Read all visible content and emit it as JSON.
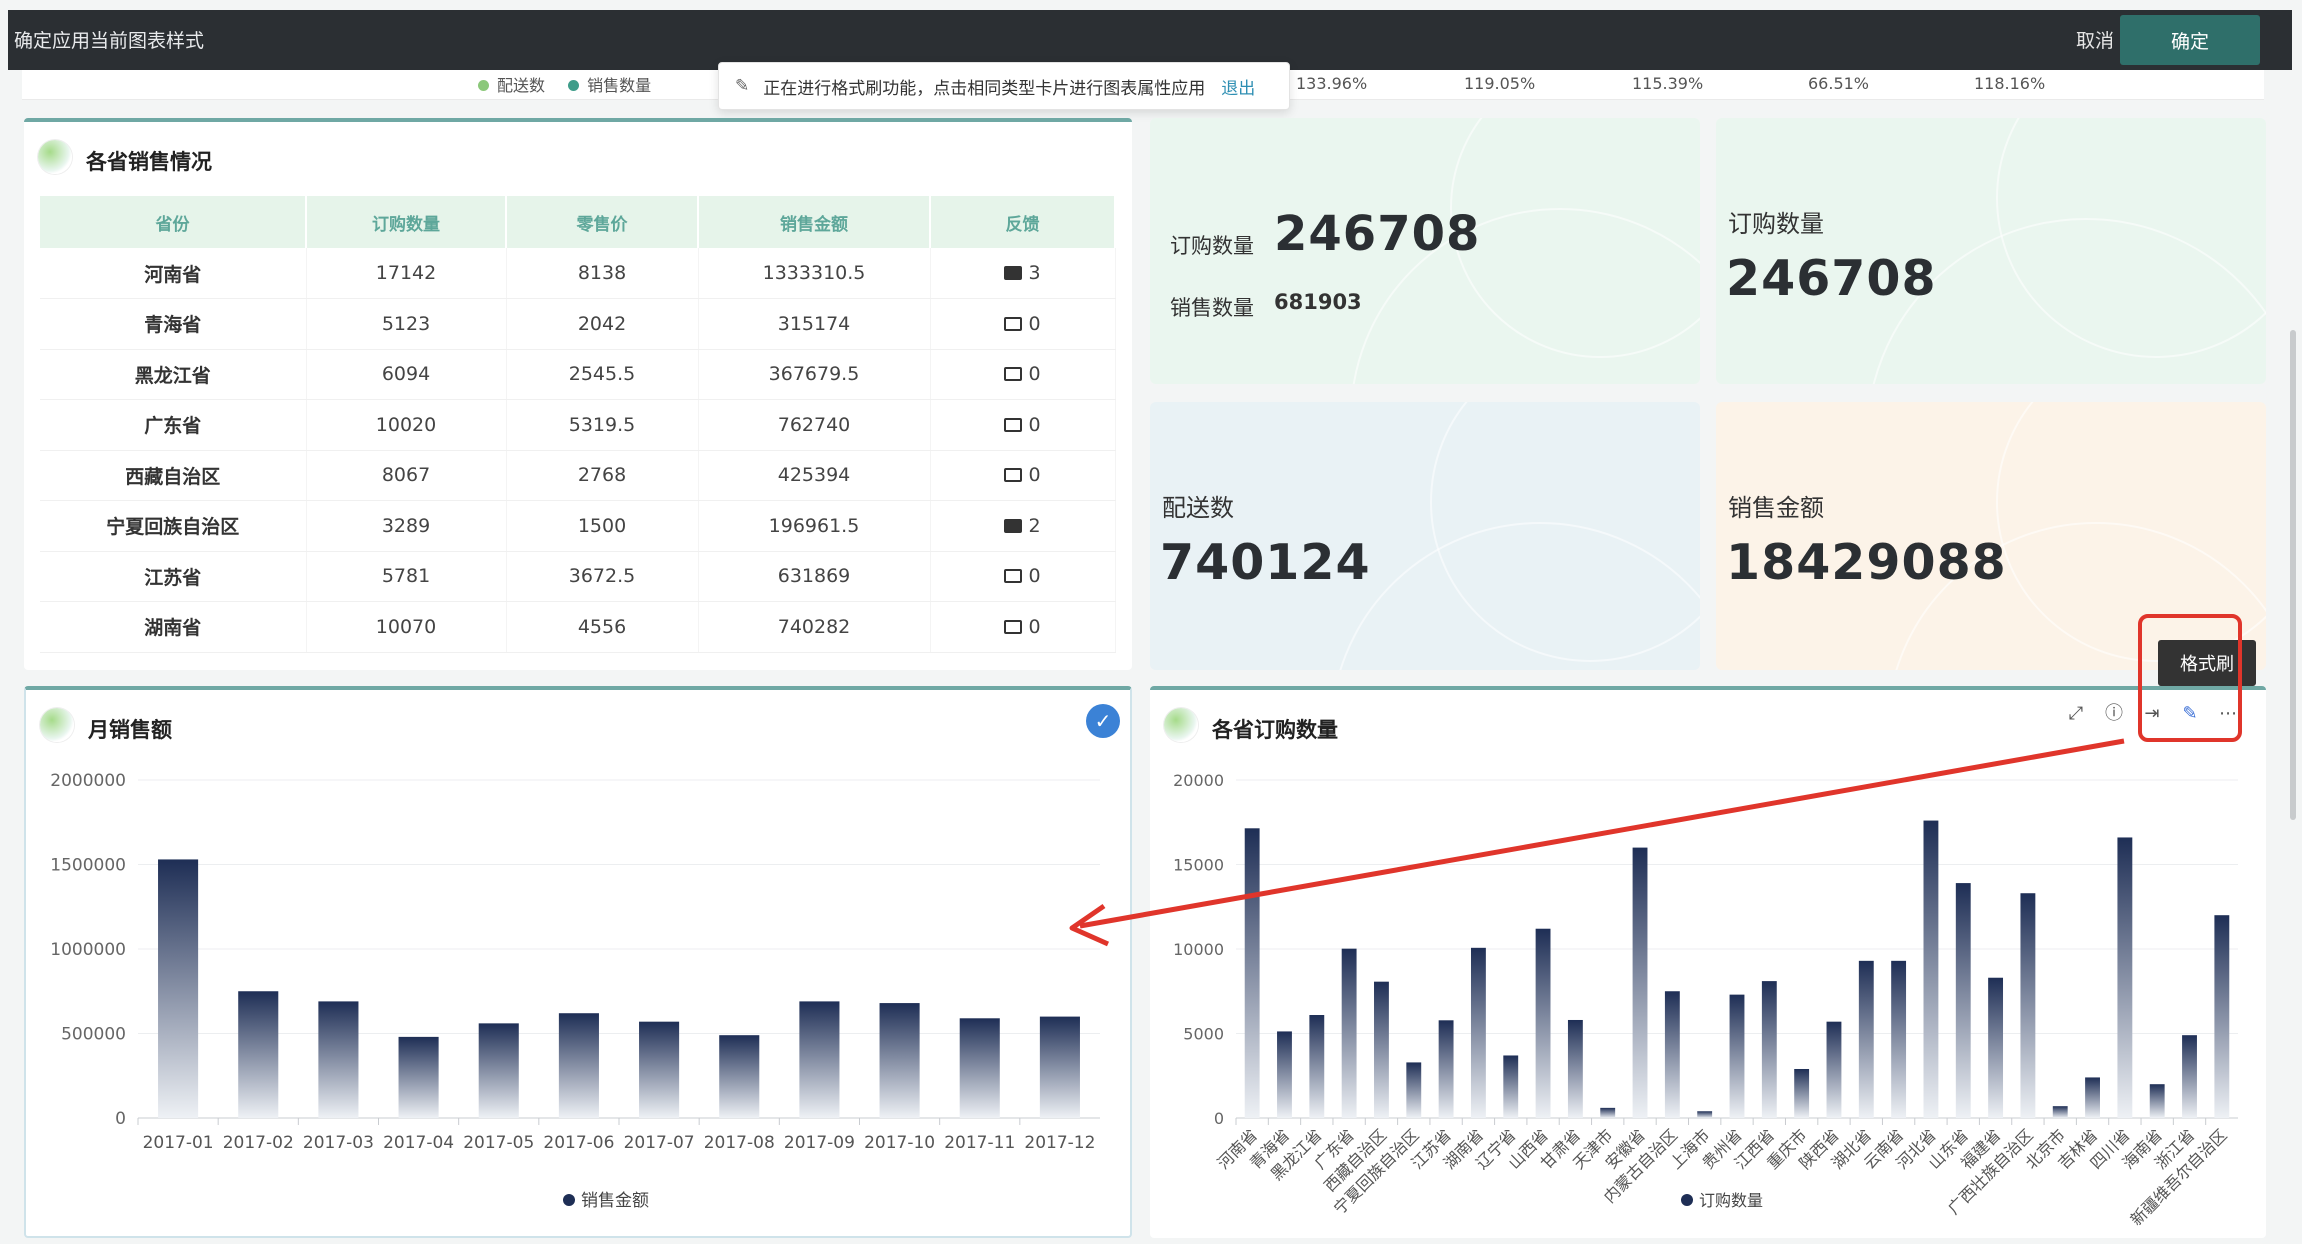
{
  "topbar": {
    "title": "确定应用当前图表样式",
    "cancel": "取消",
    "confirm": "确定"
  },
  "hidden_strip": {
    "legend": [
      {
        "name": "配送数",
        "color": "#8bc87a"
      },
      {
        "name": "销售数量",
        "color": "#3f9d8a"
      }
    ],
    "percents": [
      "133.96%",
      "119.05%",
      "115.39%",
      "66.51%",
      "118.16%"
    ]
  },
  "format_banner": {
    "text": "正在进行格式刷功能，点击相同类型卡片进行图表属性应用",
    "exit": "退出",
    "icon": "brush-icon"
  },
  "province_table": {
    "title": "各省销售情况",
    "headers": [
      "省份",
      "订购数量",
      "零售价",
      "销售金额",
      "反馈"
    ],
    "rows": [
      {
        "prov": "河南省",
        "qty": "17142",
        "price": "8138",
        "amount": "1333310.5",
        "fb": "3",
        "filled": true
      },
      {
        "prov": "青海省",
        "qty": "5123",
        "price": "2042",
        "amount": "315174",
        "fb": "0",
        "filled": false
      },
      {
        "prov": "黑龙江省",
        "qty": "6094",
        "price": "2545.5",
        "amount": "367679.5",
        "fb": "0",
        "filled": false
      },
      {
        "prov": "广东省",
        "qty": "10020",
        "price": "5319.5",
        "amount": "762740",
        "fb": "0",
        "filled": false
      },
      {
        "prov": "西藏自治区",
        "qty": "8067",
        "price": "2768",
        "amount": "425394",
        "fb": "0",
        "filled": false
      },
      {
        "prov": "宁夏回族自治区",
        "qty": "3289",
        "price": "1500",
        "amount": "196961.5",
        "fb": "2",
        "filled": true
      },
      {
        "prov": "江苏省",
        "qty": "5781",
        "price": "3672.5",
        "amount": "631869",
        "fb": "0",
        "filled": false
      },
      {
        "prov": "湖南省",
        "qty": "10070",
        "price": "4556",
        "amount": "740282",
        "fb": "0",
        "filled": false
      }
    ]
  },
  "kpis": {
    "k1": {
      "label1": "订购数量",
      "value1": "246708",
      "label2": "销售数量",
      "value2": "681903"
    },
    "k2": {
      "label": "订购数量",
      "value": "246708"
    },
    "k3": {
      "label": "配送数",
      "value": "740124"
    },
    "k4": {
      "label": "销售金额",
      "value": "18429088"
    }
  },
  "format_tooltip": "格式刷",
  "card_toolbar_icons": [
    "fullscreen-icon",
    "info-icon",
    "export-icon",
    "brush-icon",
    "more-icon"
  ],
  "chart_data": [
    {
      "type": "bar",
      "title": "月销售额",
      "categories": [
        "2017-01",
        "2017-02",
        "2017-03",
        "2017-04",
        "2017-05",
        "2017-06",
        "2017-07",
        "2017-08",
        "2017-09",
        "2017-10",
        "2017-11",
        "2017-12"
      ],
      "series": [
        {
          "name": "销售金额",
          "values": [
            1530000,
            750000,
            690000,
            480000,
            560000,
            620000,
            570000,
            490000,
            690000,
            680000,
            590000,
            600000
          ]
        }
      ],
      "yticks": [
        "0",
        "500000",
        "1000000",
        "1500000",
        "2000000"
      ],
      "ylim": [
        0,
        2000000
      ],
      "legend": "bottom-center",
      "grid": true,
      "colors": {
        "top": "#1e2e55",
        "bottom": "#eef1f5"
      }
    },
    {
      "type": "bar",
      "title": "各省订购数量",
      "categories": [
        "河南省",
        "青海省",
        "黑龙江省",
        "广东省",
        "西藏自治区",
        "宁夏回族自治区",
        "江苏省",
        "湖南省",
        "辽宁省",
        "山西省",
        "甘肃省",
        "天津市",
        "安徽省",
        "内蒙古自治区",
        "上海市",
        "贵州省",
        "江西省",
        "重庆市",
        "陕西省",
        "湖北省",
        "云南省",
        "河北省",
        "山东省",
        "福建省",
        "广西壮族自治区",
        "北京市",
        "吉林省",
        "四川省",
        "海南省",
        "浙江省",
        "新疆维吾尔自治区"
      ],
      "series": [
        {
          "name": "订购数量",
          "values": [
            17142,
            5123,
            6094,
            10020,
            8067,
            3289,
            5781,
            10070,
            3700,
            11200,
            5800,
            600,
            16000,
            7500,
            400,
            7300,
            8100,
            2900,
            5700,
            9300,
            9300,
            17600,
            13900,
            8300,
            13300,
            700,
            2400,
            16600,
            2000,
            4900,
            12000
          ]
        }
      ],
      "yticks": [
        "0",
        "5000",
        "10000",
        "15000",
        "20000"
      ],
      "ylim": [
        0,
        20000
      ],
      "legend": "bottom-center",
      "grid": true,
      "colors": {
        "top": "#1e2e55",
        "bottom": "#eef1f5"
      }
    }
  ]
}
